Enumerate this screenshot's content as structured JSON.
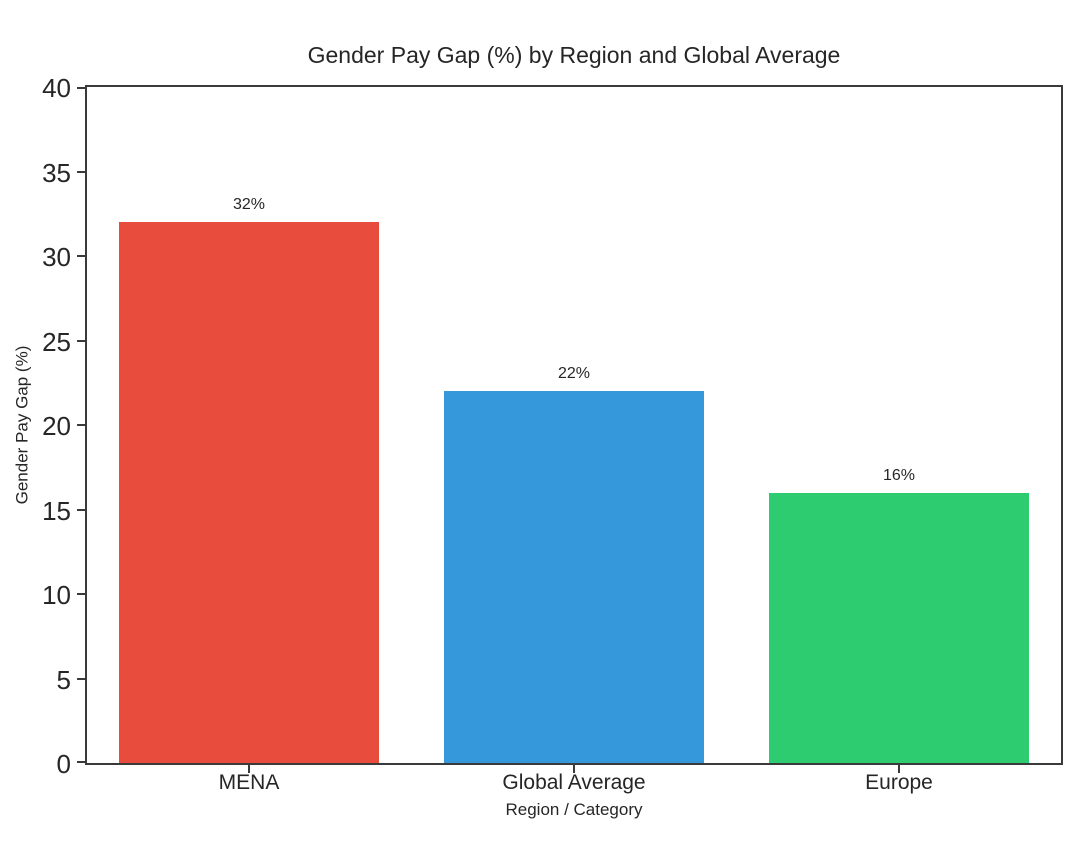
{
  "chart_data": {
    "type": "bar",
    "title": "Gender Pay Gap (%) by Region and Global Average",
    "xlabel": "Region / Category",
    "ylabel": "Gender Pay Gap (%)",
    "categories": [
      "MENA",
      "Global Average",
      "Europe"
    ],
    "values": [
      32,
      22,
      16
    ],
    "value_labels": [
      "32%",
      "22%",
      "16%"
    ],
    "bar_colors": [
      "#e74c3c",
      "#3498db",
      "#2ecc71"
    ],
    "ylim": [
      0,
      40
    ],
    "yticks": [
      0,
      5,
      10,
      15,
      20,
      25,
      30,
      35,
      40
    ],
    "bar_width_fraction": 0.8,
    "grid": "off",
    "legend": "none",
    "spine_color": "#3a3a3a",
    "text_color": "#262626",
    "background_color": "#ffffff"
  }
}
